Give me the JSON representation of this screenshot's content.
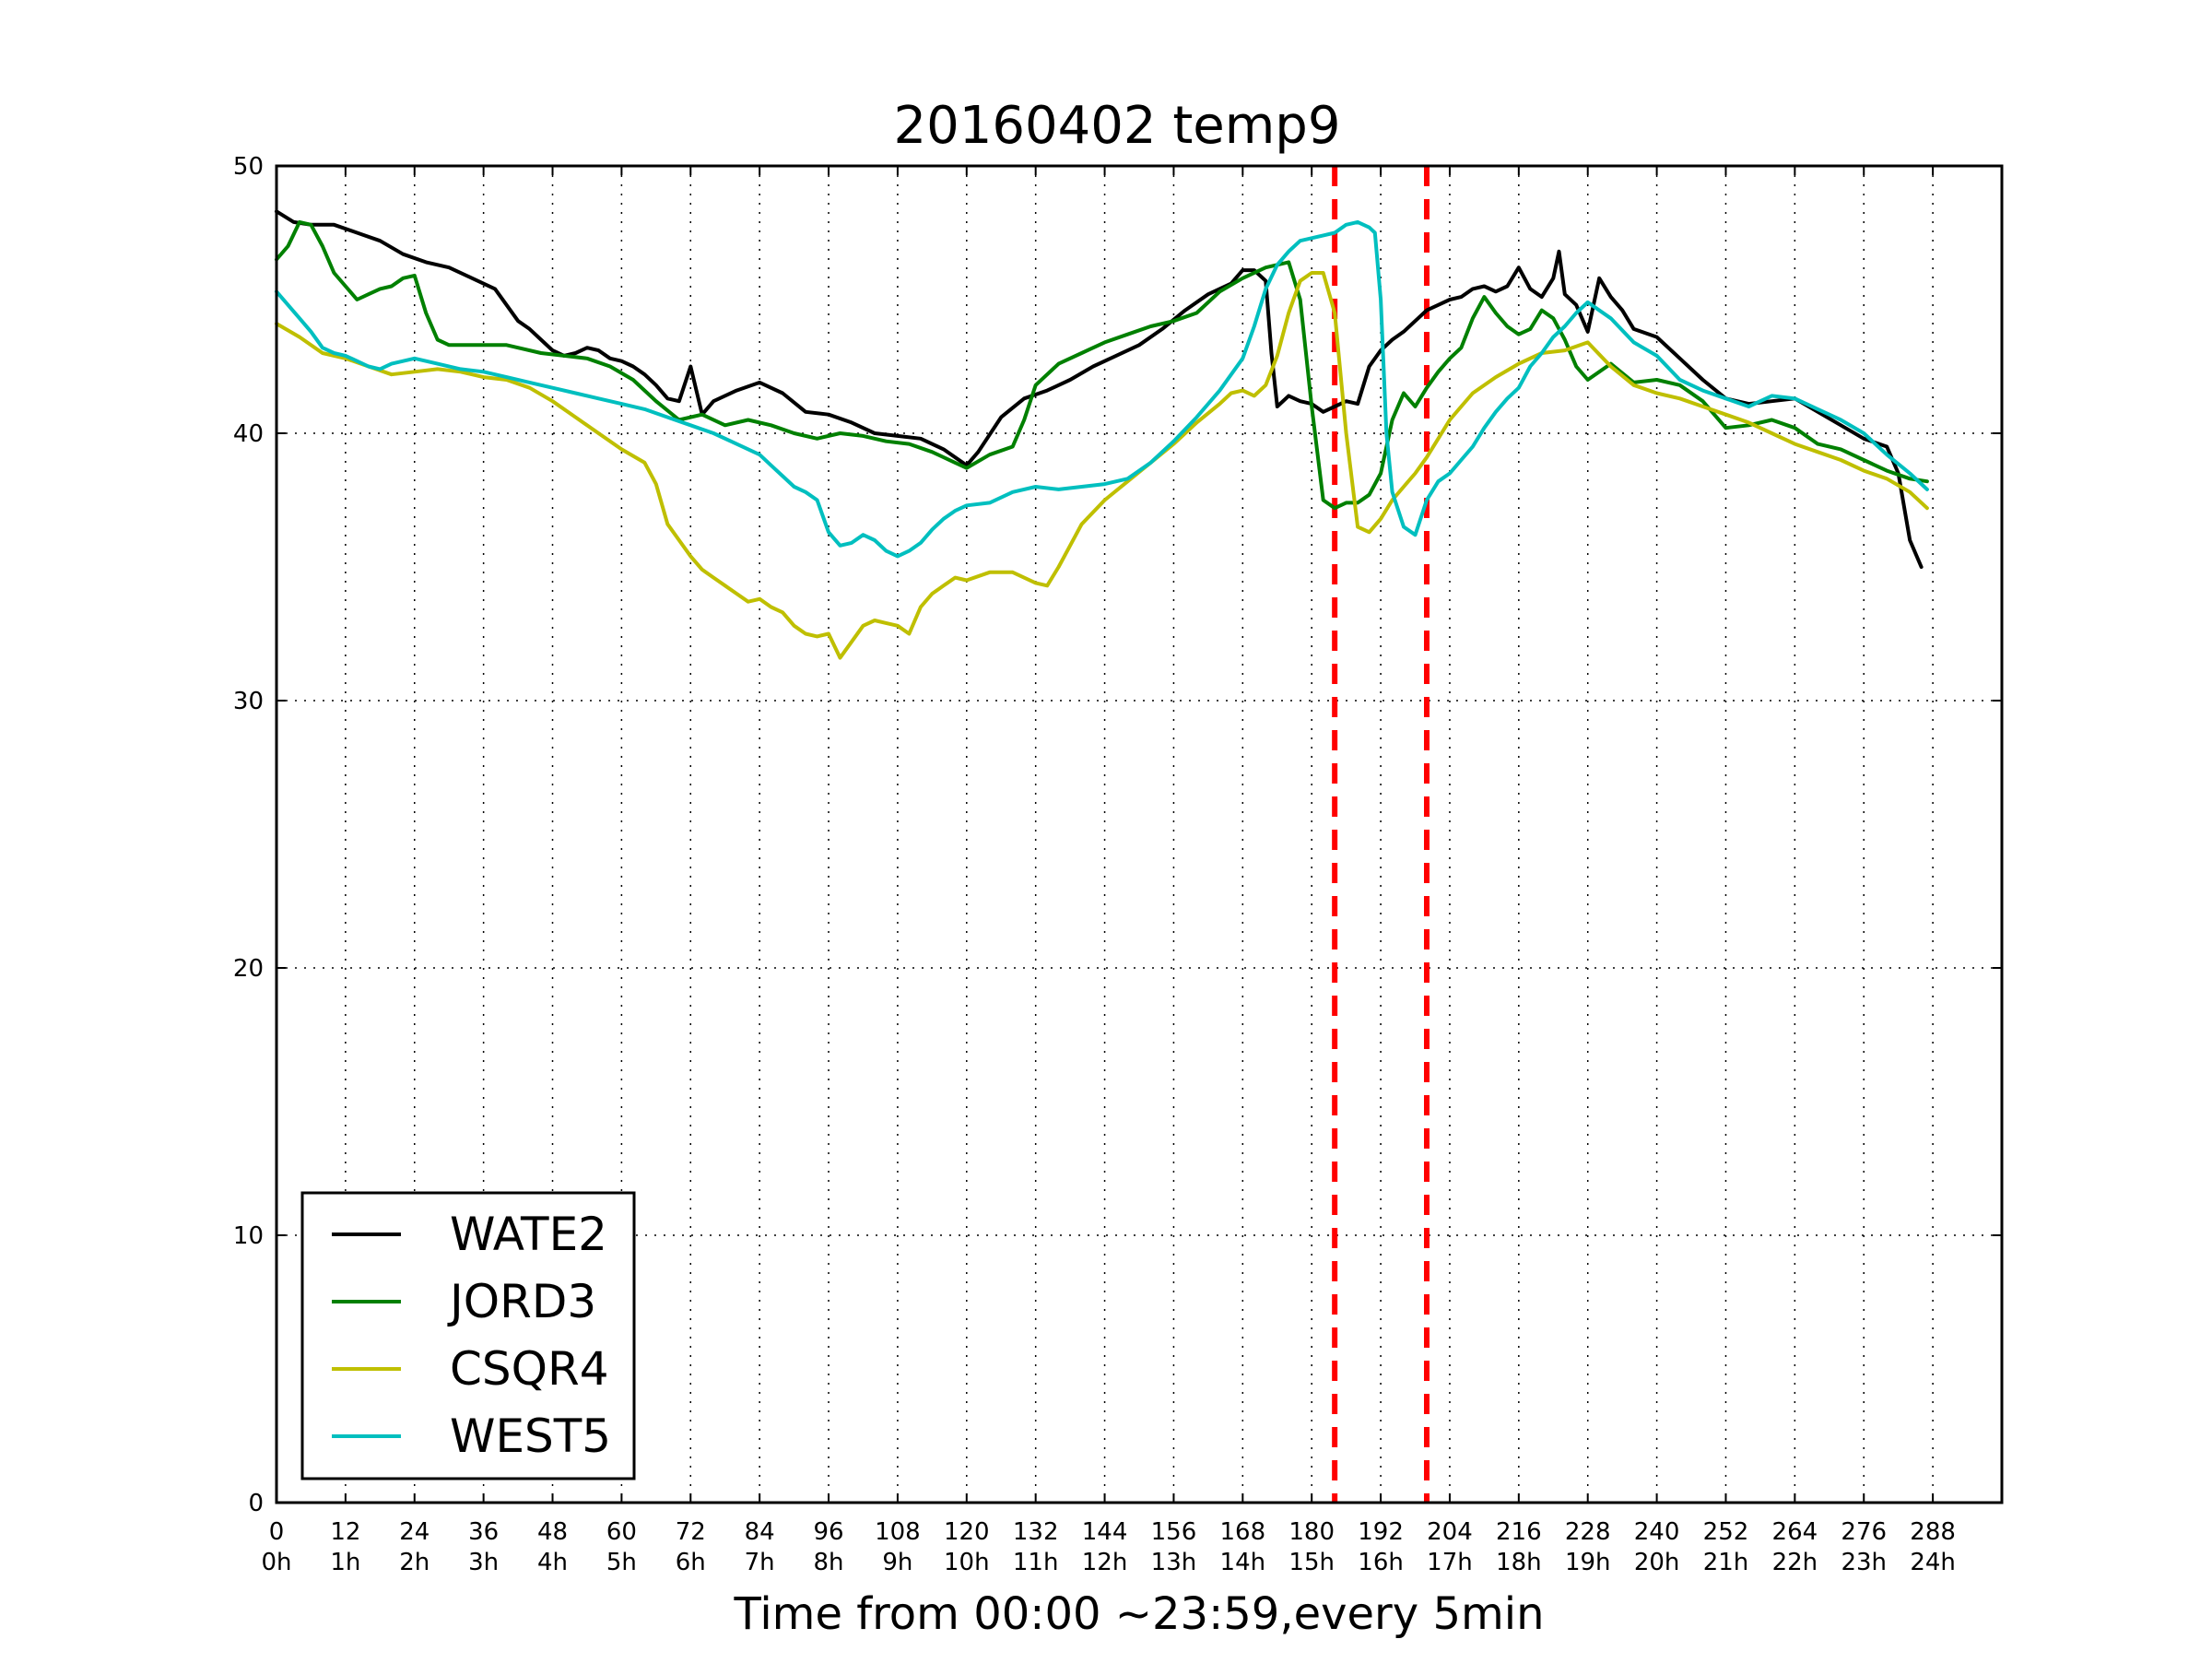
{
  "chart_data": {
    "type": "line",
    "title": "20160402 temp9",
    "xlabel": "Time from 00:00 ~23:59,every 5min",
    "ylabel": "",
    "xlim": [
      0,
      300
    ],
    "ylim": [
      0,
      50
    ],
    "grid": true,
    "legend_position": "lower-left",
    "x_ticks": [
      0,
      12,
      24,
      36,
      48,
      60,
      72,
      84,
      96,
      108,
      120,
      132,
      144,
      156,
      168,
      180,
      192,
      204,
      216,
      228,
      240,
      252,
      264,
      276,
      288
    ],
    "x_tick_labels": [
      [
        "0",
        "0h"
      ],
      [
        "12",
        "1h"
      ],
      [
        "24",
        "2h"
      ],
      [
        "36",
        "3h"
      ],
      [
        "48",
        "4h"
      ],
      [
        "60",
        "5h"
      ],
      [
        "72",
        "6h"
      ],
      [
        "84",
        "7h"
      ],
      [
        "96",
        "8h"
      ],
      [
        "108",
        "9h"
      ],
      [
        "120",
        "10h"
      ],
      [
        "132",
        "11h"
      ],
      [
        "144",
        "12h"
      ],
      [
        "156",
        "13h"
      ],
      [
        "168",
        "14h"
      ],
      [
        "180",
        "15h"
      ],
      [
        "192",
        "16h"
      ],
      [
        "204",
        "17h"
      ],
      [
        "216",
        "18h"
      ],
      [
        "228",
        "19h"
      ],
      [
        "240",
        "20h"
      ],
      [
        "252",
        "21h"
      ],
      [
        "264",
        "22h"
      ],
      [
        "276",
        "23h"
      ],
      [
        "288",
        "24h"
      ]
    ],
    "y_ticks": [
      0,
      10,
      20,
      30,
      40,
      50
    ],
    "vlines": [
      {
        "x": 184,
        "color": "#ff0000",
        "style": "dashed"
      },
      {
        "x": 200,
        "color": "#ff0000",
        "style": "dashed"
      }
    ],
    "series": [
      {
        "name": "WATE2",
        "color": "#000000",
        "x": [
          0,
          3,
          6,
          10,
          14,
          18,
          22,
          26,
          30,
          34,
          38,
          40,
          42,
          44,
          46,
          48,
          50,
          52,
          54,
          56,
          58,
          60,
          62,
          64,
          66,
          68,
          70,
          72,
          74,
          76,
          80,
          84,
          88,
          92,
          96,
          100,
          104,
          108,
          112,
          116,
          120,
          122,
          126,
          130,
          134,
          138,
          142,
          146,
          150,
          154,
          158,
          162,
          166,
          168,
          170,
          172,
          173,
          174,
          176,
          178,
          180,
          182,
          184,
          186,
          188,
          190,
          192,
          194,
          196,
          198,
          200,
          202,
          204,
          206,
          208,
          210,
          212,
          214,
          216,
          218,
          220,
          222,
          223,
          224,
          226,
          228,
          230,
          232,
          234,
          236,
          240,
          244,
          248,
          252,
          256,
          260,
          264,
          268,
          272,
          276,
          280,
          282,
          284,
          286
        ],
        "y": [
          48.3,
          47.9,
          47.8,
          47.8,
          47.5,
          47.2,
          46.7,
          46.4,
          46.2,
          45.8,
          45.4,
          44.8,
          44.2,
          43.9,
          43.5,
          43.1,
          42.9,
          43.0,
          43.2,
          43.1,
          42.8,
          42.7,
          42.5,
          42.2,
          41.8,
          41.3,
          41.2,
          42.5,
          40.7,
          41.2,
          41.6,
          41.9,
          41.5,
          40.8,
          40.7,
          40.4,
          40.0,
          39.9,
          39.8,
          39.4,
          38.8,
          39.3,
          40.6,
          41.3,
          41.6,
          42.0,
          42.5,
          42.9,
          43.3,
          43.9,
          44.6,
          45.2,
          45.6,
          46.1,
          46.1,
          45.7,
          43.0,
          41.0,
          41.4,
          41.2,
          41.1,
          40.8,
          41.0,
          41.2,
          41.1,
          42.5,
          43.1,
          43.5,
          43.8,
          44.2,
          44.6,
          44.8,
          45.0,
          45.1,
          45.4,
          45.5,
          45.3,
          45.5,
          46.2,
          45.4,
          45.1,
          45.8,
          46.8,
          45.2,
          44.8,
          43.8,
          45.8,
          45.1,
          44.6,
          43.9,
          43.6,
          42.8,
          42.0,
          41.3,
          41.1,
          41.2,
          41.3,
          40.8,
          40.3,
          39.8,
          39.5,
          38.5,
          36.0,
          35.0
        ]
      },
      {
        "name": "JORD3",
        "color": "#008000",
        "x": [
          0,
          2,
          4,
          6,
          8,
          10,
          12,
          14,
          16,
          18,
          20,
          22,
          24,
          26,
          28,
          30,
          34,
          40,
          46,
          50,
          54,
          58,
          62,
          66,
          70,
          74,
          78,
          82,
          86,
          90,
          94,
          98,
          102,
          106,
          110,
          114,
          118,
          120,
          124,
          128,
          130,
          132,
          136,
          140,
          144,
          148,
          152,
          156,
          160,
          164,
          168,
          172,
          176,
          178,
          180,
          182,
          184,
          186,
          188,
          190,
          192,
          194,
          196,
          198,
          200,
          202,
          204,
          206,
          208,
          210,
          212,
          214,
          216,
          218,
          220,
          222,
          224,
          226,
          228,
          232,
          236,
          240,
          244,
          248,
          252,
          256,
          260,
          264,
          268,
          272,
          276,
          280,
          284,
          287
        ],
        "y": [
          46.5,
          47.0,
          47.9,
          47.8,
          47.0,
          46.0,
          45.5,
          45.0,
          45.2,
          45.4,
          45.5,
          45.8,
          45.9,
          44.5,
          43.5,
          43.3,
          43.3,
          43.3,
          43.0,
          42.9,
          42.8,
          42.5,
          42.0,
          41.2,
          40.5,
          40.7,
          40.3,
          40.5,
          40.3,
          40.0,
          39.8,
          40.0,
          39.9,
          39.7,
          39.6,
          39.3,
          38.9,
          38.7,
          39.2,
          39.5,
          40.5,
          41.8,
          42.6,
          43.0,
          43.4,
          43.7,
          44.0,
          44.2,
          44.5,
          45.3,
          45.8,
          46.2,
          46.4,
          45.0,
          41.0,
          37.5,
          37.2,
          37.4,
          37.4,
          37.7,
          38.5,
          40.5,
          41.5,
          41.0,
          41.7,
          42.3,
          42.8,
          43.2,
          44.3,
          45.1,
          44.5,
          44.0,
          43.7,
          43.9,
          44.6,
          44.3,
          43.5,
          42.5,
          42.0,
          42.6,
          41.9,
          42.0,
          41.8,
          41.2,
          40.2,
          40.3,
          40.5,
          40.2,
          39.6,
          39.4,
          39.0,
          38.6,
          38.3,
          38.2
        ]
      },
      {
        "name": "CSQR4",
        "color": "#bfbf00",
        "x": [
          0,
          4,
          8,
          12,
          16,
          20,
          24,
          28,
          32,
          36,
          40,
          44,
          48,
          52,
          56,
          60,
          64,
          66,
          68,
          70,
          72,
          74,
          76,
          78,
          80,
          82,
          84,
          86,
          88,
          90,
          92,
          94,
          96,
          98,
          100,
          102,
          104,
          106,
          108,
          110,
          112,
          114,
          116,
          118,
          120,
          124,
          128,
          132,
          134,
          136,
          138,
          140,
          144,
          148,
          152,
          156,
          160,
          164,
          166,
          168,
          170,
          172,
          174,
          176,
          178,
          180,
          182,
          184,
          186,
          188,
          190,
          192,
          194,
          196,
          198,
          200,
          202,
          204,
          206,
          208,
          212,
          216,
          220,
          224,
          228,
          232,
          236,
          240,
          244,
          248,
          252,
          256,
          260,
          264,
          268,
          272,
          276,
          280,
          284,
          287
        ],
        "y": [
          44.1,
          43.6,
          43.0,
          42.8,
          42.5,
          42.2,
          42.3,
          42.4,
          42.3,
          42.1,
          42.0,
          41.7,
          41.2,
          40.6,
          40.0,
          39.4,
          38.9,
          38.1,
          36.6,
          36.0,
          35.4,
          34.9,
          34.6,
          34.3,
          34.0,
          33.7,
          33.8,
          33.5,
          33.3,
          32.8,
          32.5,
          32.4,
          32.5,
          31.6,
          32.2,
          32.8,
          33.0,
          32.9,
          32.8,
          32.5,
          33.5,
          34.0,
          34.3,
          34.6,
          34.5,
          34.8,
          34.8,
          34.4,
          34.3,
          35.0,
          35.8,
          36.6,
          37.5,
          38.2,
          38.9,
          39.6,
          40.4,
          41.1,
          41.5,
          41.6,
          41.4,
          41.8,
          42.9,
          44.5,
          45.7,
          46.0,
          46.0,
          44.5,
          40.0,
          36.5,
          36.3,
          36.8,
          37.5,
          38.0,
          38.5,
          39.1,
          39.8,
          40.5,
          41.0,
          41.5,
          42.1,
          42.6,
          43.0,
          43.1,
          43.4,
          42.5,
          41.8,
          41.5,
          41.3,
          41.0,
          40.7,
          40.4,
          40.0,
          39.6,
          39.3,
          39.0,
          38.6,
          38.3,
          37.8,
          37.2
        ]
      },
      {
        "name": "WEST5",
        "color": "#00bfbf",
        "x": [
          0,
          2,
          4,
          6,
          8,
          10,
          12,
          14,
          16,
          18,
          20,
          24,
          28,
          32,
          36,
          40,
          44,
          48,
          52,
          56,
          60,
          64,
          68,
          72,
          76,
          80,
          84,
          86,
          88,
          90,
          92,
          94,
          96,
          98,
          100,
          102,
          104,
          106,
          108,
          110,
          112,
          114,
          116,
          118,
          120,
          124,
          128,
          132,
          136,
          140,
          144,
          148,
          152,
          156,
          160,
          164,
          168,
          170,
          172,
          174,
          176,
          178,
          180,
          182,
          184,
          186,
          188,
          190,
          191,
          192,
          193,
          194,
          196,
          198,
          200,
          202,
          204,
          206,
          208,
          210,
          212,
          214,
          216,
          218,
          220,
          222,
          224,
          226,
          228,
          232,
          236,
          240,
          244,
          248,
          252,
          256,
          260,
          264,
          268,
          272,
          276,
          280,
          284,
          287
        ],
        "y": [
          45.3,
          44.8,
          44.3,
          43.8,
          43.2,
          43.0,
          42.9,
          42.7,
          42.5,
          42.4,
          42.6,
          42.8,
          42.6,
          42.4,
          42.3,
          42.1,
          41.9,
          41.7,
          41.5,
          41.3,
          41.1,
          40.9,
          40.6,
          40.3,
          40.0,
          39.6,
          39.2,
          38.8,
          38.4,
          38.0,
          37.8,
          37.5,
          36.3,
          35.8,
          35.9,
          36.2,
          36.0,
          35.6,
          35.4,
          35.6,
          35.9,
          36.4,
          36.8,
          37.1,
          37.3,
          37.4,
          37.8,
          38.0,
          37.9,
          38.0,
          38.1,
          38.3,
          38.9,
          39.7,
          40.6,
          41.6,
          42.8,
          44.0,
          45.4,
          46.3,
          46.8,
          47.2,
          47.3,
          47.4,
          47.5,
          47.8,
          47.9,
          47.7,
          47.5,
          45.0,
          40.0,
          37.8,
          36.5,
          36.2,
          37.5,
          38.2,
          38.5,
          39.0,
          39.5,
          40.2,
          40.8,
          41.3,
          41.7,
          42.5,
          43.0,
          43.6,
          44.0,
          44.5,
          44.9,
          44.3,
          43.4,
          42.9,
          42.0,
          41.6,
          41.3,
          41.0,
          41.4,
          41.3,
          40.9,
          40.5,
          40.0,
          39.2,
          38.5,
          37.9
        ]
      }
    ]
  }
}
